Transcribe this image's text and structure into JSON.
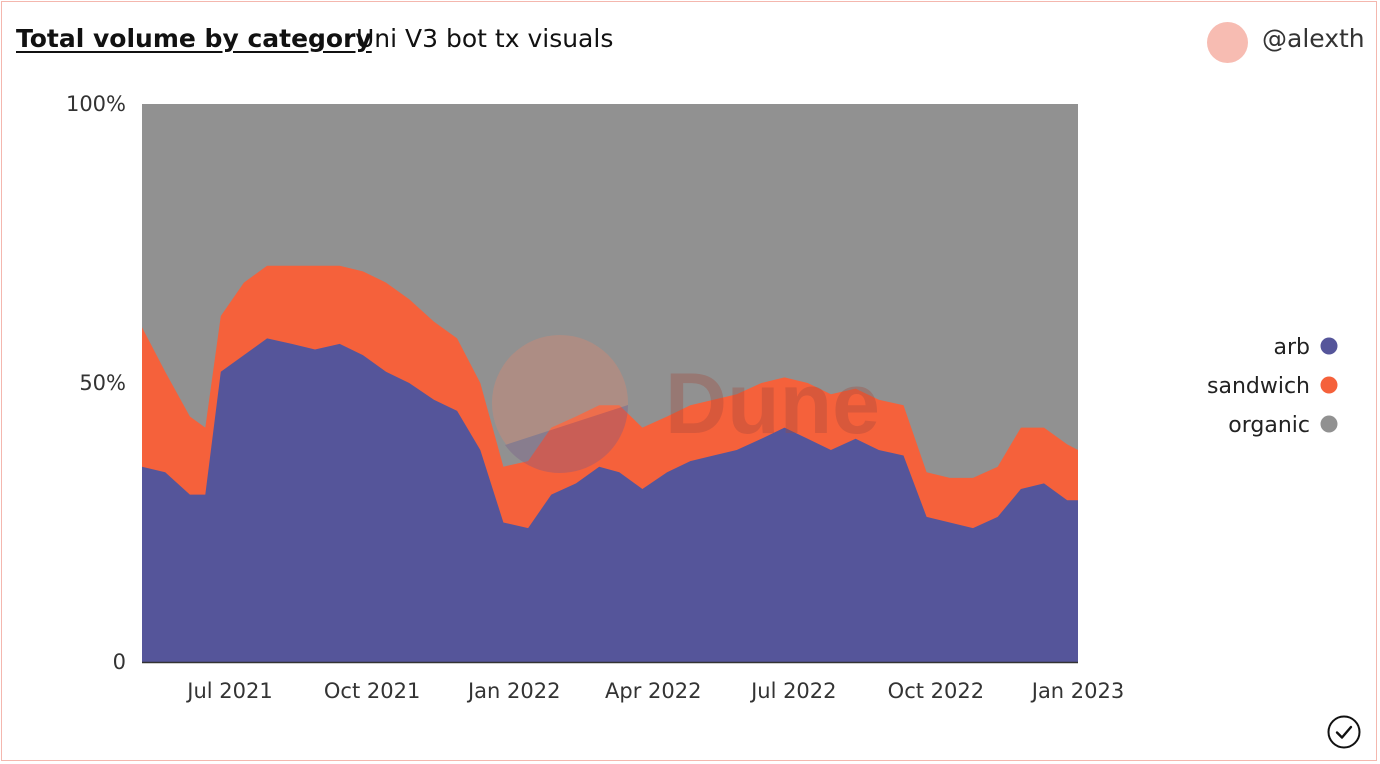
{
  "header": {
    "title": "Total volume by category",
    "subtitle": "Uni V3 bot tx visuals",
    "author": "@alexth"
  },
  "colors": {
    "arb": "#55559a",
    "sandwich": "#f5613b",
    "organic": "#919191",
    "accent": "#f7bcb2",
    "watermark": "Dune"
  },
  "icons": {
    "avatar": "user-avatar-icon",
    "status": "check-circle-icon"
  },
  "chart_data": {
    "type": "area",
    "stacking": "percent",
    "title": "Total volume by category",
    "xlabel": "",
    "ylabel": "",
    "ylim": [
      0,
      100
    ],
    "y_ticks": [
      "0",
      "50%",
      "100%"
    ],
    "x_ticks": [
      "Jul 2021",
      "Oct 2021",
      "Jan 2022",
      "Apr 2022",
      "Jul 2022",
      "Oct 2022",
      "Jan 2023"
    ],
    "x_tick_dates": [
      "2021-07-01",
      "2021-10-01",
      "2022-01-01",
      "2022-04-01",
      "2022-07-01",
      "2022-10-01",
      "2023-01-01"
    ],
    "x_range": [
      "2021-05-05",
      "2023-01-01"
    ],
    "legend_position": "right",
    "grid": false,
    "x": [
      "2021-05-05",
      "2021-05-20",
      "2021-06-05",
      "2021-06-15",
      "2021-06-25",
      "2021-07-10",
      "2021-07-25",
      "2021-08-10",
      "2021-08-25",
      "2021-09-10",
      "2021-09-25",
      "2021-10-10",
      "2021-10-25",
      "2021-11-10",
      "2021-11-25",
      "2021-12-10",
      "2021-12-25",
      "2022-01-10",
      "2022-01-25",
      "2022-02-10",
      "2022-02-25",
      "2022-03-10",
      "2022-03-25",
      "2022-04-10",
      "2022-04-25",
      "2022-05-10",
      "2022-05-25",
      "2022-06-10",
      "2022-06-25",
      "2022-07-10",
      "2022-07-25",
      "2022-08-10",
      "2022-08-25",
      "2022-09-10",
      "2022-09-25",
      "2022-10-10",
      "2022-10-25",
      "2022-11-10",
      "2022-11-25",
      "2022-12-10",
      "2022-12-25",
      "2023-01-01"
    ],
    "series": [
      {
        "name": "arb",
        "values": [
          35,
          34,
          30,
          30,
          52,
          55,
          58,
          57,
          56,
          57,
          55,
          52,
          50,
          47,
          45,
          38,
          25,
          24,
          30,
          32,
          35,
          34,
          31,
          34,
          36,
          37,
          38,
          40,
          42,
          40,
          38,
          40,
          38,
          37,
          26,
          25,
          24,
          26,
          31,
          32,
          29,
          29
        ]
      },
      {
        "name": "sandwich",
        "values": [
          25,
          18,
          14,
          12,
          10,
          13,
          13,
          14,
          15,
          14,
          15,
          16,
          15,
          14,
          13,
          12,
          10,
          12,
          12,
          12,
          11,
          12,
          11,
          10,
          10,
          10,
          10,
          10,
          9,
          10,
          10,
          9,
          9,
          9,
          8,
          8,
          9,
          9,
          11,
          10,
          10,
          9
        ]
      },
      {
        "name": "organic",
        "values": [
          40,
          48,
          56,
          58,
          38,
          32,
          29,
          29,
          29,
          29,
          30,
          32,
          35,
          39,
          42,
          50,
          65,
          64,
          58,
          56,
          54,
          54,
          58,
          56,
          54,
          53,
          52,
          50,
          49,
          50,
          52,
          51,
          53,
          54,
          66,
          67,
          67,
          65,
          58,
          58,
          61,
          62
        ]
      }
    ]
  }
}
